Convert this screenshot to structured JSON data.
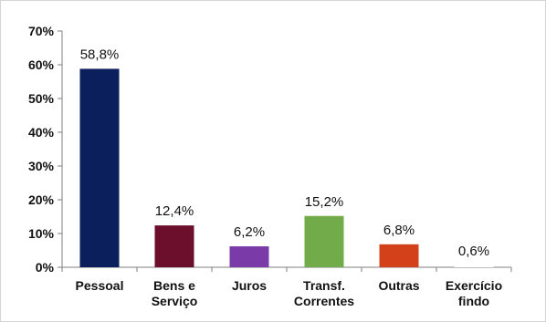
{
  "chart_data": {
    "type": "bar",
    "categories": [
      [
        "Pessoal"
      ],
      [
        "Bens e",
        "Serviço"
      ],
      [
        "Juros"
      ],
      [
        "Transf.",
        "Correntes"
      ],
      [
        "Outras"
      ],
      [
        "Exercício",
        "findo"
      ]
    ],
    "values": [
      58.8,
      12.4,
      6.2,
      15.2,
      6.8,
      0.6
    ],
    "data_labels": [
      "58,8%",
      "12,4%",
      "6,2%",
      "15,2%",
      "6,8%",
      "0,6%"
    ],
    "bar_colors": [
      "#0a1f5c",
      "#6b0f2c",
      "#7a3aa8",
      "#72ab4a",
      "#d2411a",
      "#ffffff"
    ],
    "y_ticks": [
      "0%",
      "10%",
      "20%",
      "30%",
      "40%",
      "50%",
      "60%",
      "70%"
    ],
    "ylim": [
      0,
      70
    ],
    "grid": false,
    "title": "",
    "xlabel": "",
    "ylabel": ""
  }
}
